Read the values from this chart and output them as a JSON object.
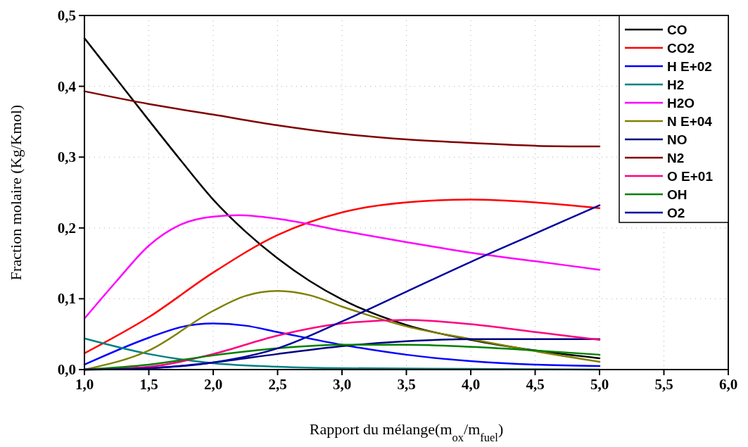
{
  "chart_data": {
    "type": "line",
    "xlabel": "Rapport du mélange(m$_{ox}$/m$_{fuel}$)",
    "ylabel": "Fraction molaire (Kg/Kmol)",
    "xlim": [
      1,
      6
    ],
    "ylim": [
      0,
      0.5
    ],
    "xticks": [
      {
        "value": 1,
        "label": "1,0"
      },
      {
        "value": 1.5,
        "label": "1,5"
      },
      {
        "value": 2,
        "label": "2,0"
      },
      {
        "value": 2.5,
        "label": "2,5"
      },
      {
        "value": 3,
        "label": "3,0"
      },
      {
        "value": 3.5,
        "label": "3,5"
      },
      {
        "value": 4,
        "label": "4,0"
      },
      {
        "value": 4.5,
        "label": "4,5"
      },
      {
        "value": 5,
        "label": "5,0"
      },
      {
        "value": 5.5,
        "label": "5,5"
      },
      {
        "value": 6,
        "label": "6,0"
      }
    ],
    "yticks": [
      {
        "value": 0,
        "label": "0,0"
      },
      {
        "value": 0.1,
        "label": "0,1"
      },
      {
        "value": 0.2,
        "label": "0,2"
      },
      {
        "value": 0.3,
        "label": "0,3"
      },
      {
        "value": 0.4,
        "label": "0,4"
      },
      {
        "value": 0.5,
        "label": "0,5"
      }
    ],
    "grid": true,
    "legend": "top right",
    "line_style": "solid",
    "marker": "none",
    "series": [
      {
        "name": "CO",
        "color": "#000000",
        "x": [
          1,
          1.25,
          1.5,
          1.75,
          2,
          2.25,
          2.5,
          2.75,
          3,
          3.5,
          4,
          4.5,
          5
        ],
        "values": [
          0.468,
          0.41,
          0.352,
          0.295,
          0.24,
          0.195,
          0.157,
          0.125,
          0.099,
          0.063,
          0.042,
          0.027,
          0.016
        ]
      },
      {
        "name": "CO2",
        "color": "#ff0000",
        "x": [
          1,
          1.5,
          2,
          2.5,
          3,
          3.5,
          4,
          4.5,
          5
        ],
        "values": [
          0.023,
          0.074,
          0.137,
          0.19,
          0.222,
          0.236,
          0.24,
          0.236,
          0.228
        ]
      },
      {
        "name": "H E+02",
        "color": "#0000ff",
        "x": [
          1,
          1.5,
          1.75,
          2,
          2.25,
          2.5,
          3,
          3.5,
          4,
          4.5,
          5
        ],
        "values": [
          0.007,
          0.045,
          0.06,
          0.065,
          0.062,
          0.053,
          0.035,
          0.021,
          0.012,
          0.007,
          0.005
        ]
      },
      {
        "name": "H2",
        "color": "#008080",
        "x": [
          1,
          1.5,
          2,
          2.5,
          3,
          4,
          5
        ],
        "values": [
          0.044,
          0.022,
          0.009,
          0.004,
          0.002,
          0.001,
          0.0
        ]
      },
      {
        "name": "H2O",
        "color": "#ff00ff",
        "x": [
          1,
          1.25,
          1.5,
          1.75,
          2,
          2.2,
          2.5,
          3,
          3.5,
          4,
          4.5,
          5
        ],
        "values": [
          0.072,
          0.125,
          0.175,
          0.205,
          0.216,
          0.218,
          0.213,
          0.196,
          0.18,
          0.165,
          0.153,
          0.141
        ]
      },
      {
        "name": "N E+04",
        "color": "#808000",
        "x": [
          1,
          1.5,
          2,
          2.25,
          2.5,
          2.75,
          3,
          3.5,
          4,
          4.5,
          5
        ],
        "values": [
          0.0,
          0.027,
          0.083,
          0.104,
          0.111,
          0.105,
          0.089,
          0.061,
          0.043,
          0.026,
          0.011
        ]
      },
      {
        "name": "NO",
        "color": "#000080",
        "x": [
          1,
          1.5,
          2,
          2.5,
          3,
          3.5,
          4,
          4.5,
          5
        ],
        "values": [
          0.0,
          0.002,
          0.01,
          0.022,
          0.033,
          0.04,
          0.043,
          0.043,
          0.043
        ]
      },
      {
        "name": "N2",
        "color": "#800000",
        "x": [
          1,
          1.5,
          2,
          2.5,
          3,
          3.5,
          4,
          4.5,
          5
        ],
        "values": [
          0.393,
          0.375,
          0.36,
          0.345,
          0.333,
          0.325,
          0.32,
          0.316,
          0.315
        ]
      },
      {
        "name": "O E+01",
        "color": "#ff0080",
        "x": [
          1,
          1.5,
          2,
          2.5,
          3,
          3.5,
          4,
          4.5,
          5
        ],
        "values": [
          0.0,
          0.004,
          0.022,
          0.048,
          0.065,
          0.07,
          0.064,
          0.053,
          0.042
        ]
      },
      {
        "name": "OH",
        "color": "#008000",
        "x": [
          1,
          1.5,
          2,
          2.5,
          3,
          3.5,
          4,
          4.5,
          5
        ],
        "values": [
          0.0,
          0.007,
          0.02,
          0.03,
          0.035,
          0.035,
          0.032,
          0.027,
          0.021
        ]
      },
      {
        "name": "O2",
        "color": "#0000a0",
        "x": [
          1,
          1.5,
          2,
          2.5,
          3,
          3.5,
          4,
          4.5,
          5
        ],
        "values": [
          0.0,
          0.002,
          0.01,
          0.03,
          0.068,
          0.11,
          0.152,
          0.192,
          0.232
        ]
      }
    ]
  }
}
